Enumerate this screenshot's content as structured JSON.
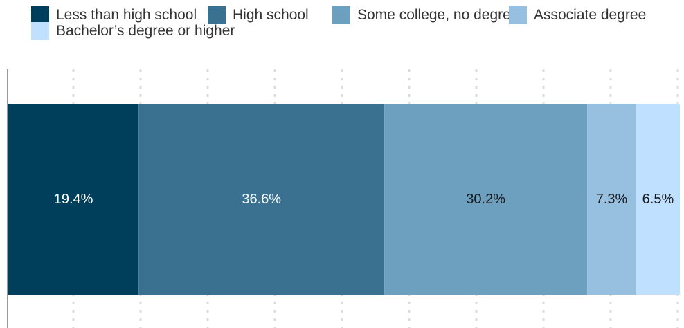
{
  "chart_data": {
    "type": "bar",
    "orientation": "horizontal",
    "stacked": true,
    "normalized": true,
    "categories": [
      ""
    ],
    "series": [
      {
        "name": "Less than high school",
        "values": [
          19.4
        ],
        "label": "19.4%",
        "color": "#003f5c",
        "label_color": "#ffffff"
      },
      {
        "name": "High school",
        "values": [
          36.6
        ],
        "label": "36.6%",
        "color": "#3a7191",
        "label_color": "#ffffff"
      },
      {
        "name": "Some college, no degree",
        "values": [
          30.2
        ],
        "label": "30.2%",
        "color": "#6d9fbf",
        "label_color": "#1a1a1a"
      },
      {
        "name": "Associate degree",
        "values": [
          7.3
        ],
        "label": "7.3%",
        "color": "#97bfe0",
        "label_color": "#1a1a1a"
      },
      {
        "name": "Bachelor’s degree or higher",
        "values": [
          6.5
        ],
        "label": "6.5%",
        "color": "#bfe0ff",
        "label_color": "#1a1a1a"
      }
    ],
    "xlim": [
      0,
      100
    ],
    "grid": true,
    "legend": "top"
  }
}
